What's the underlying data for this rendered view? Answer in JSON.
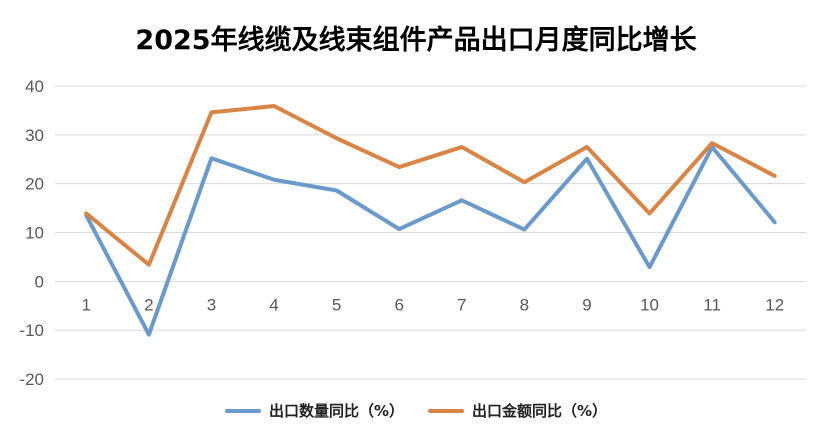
{
  "chart_data": {
    "type": "line",
    "title": "2025年线缆及线束组件产品出口月度同比增长",
    "categories": [
      "1",
      "2",
      "3",
      "4",
      "5",
      "6",
      "7",
      "8",
      "9",
      "10",
      "11",
      "12"
    ],
    "ylim": [
      -20,
      40
    ],
    "yticks": [
      "40",
      "30",
      "20",
      "10",
      "0",
      "-10",
      "-20"
    ],
    "grid": true,
    "legend_position": "bottom",
    "series": [
      {
        "name": "出口数量同比（%）",
        "color": "#6a9acb",
        "values": [
          13.5,
          -10.9,
          25.2,
          20.8,
          18.6,
          10.7,
          16.6,
          10.6,
          25.1,
          2.9,
          27.5,
          12.1
        ]
      },
      {
        "name": "出口金额同比（%）",
        "color": "#d98444",
        "values": [
          13.9,
          3.4,
          34.6,
          35.9,
          29.3,
          23.4,
          27.5,
          20.3,
          27.5,
          13.9,
          28.3,
          21.6
        ]
      }
    ]
  }
}
